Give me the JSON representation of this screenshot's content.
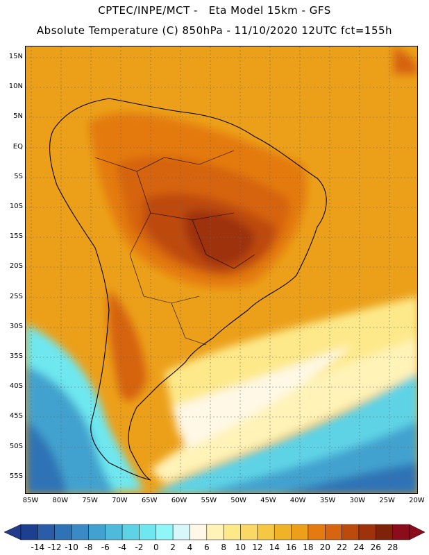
{
  "title_line1": "CPTEC/INPE/MCT -   Eta Model 15km - GFS",
  "title_line2": "Absolute Temperature (C) 850hPa - 11/10/2020 12UTC fct=155h",
  "lat_labels": [
    "15N",
    "10N",
    "5N",
    "EQ",
    "5S",
    "10S",
    "15S",
    "20S",
    "25S",
    "30S",
    "35S",
    "40S",
    "45S",
    "50S",
    "55S"
  ],
  "lon_labels": [
    "85W",
    "80W",
    "75W",
    "70W",
    "65W",
    "60W",
    "55W",
    "50W",
    "45W",
    "40W",
    "35W",
    "30W",
    "25W",
    "20W"
  ],
  "legend": {
    "ticks": [
      "-14",
      "-12",
      "-10",
      "-8",
      "-6",
      "-4",
      "-2",
      "0",
      "2",
      "4",
      "6",
      "8",
      "10",
      "12",
      "14",
      "16",
      "18",
      "20",
      "22",
      "24",
      "26",
      "28"
    ],
    "colors": [
      "#1c3f8f",
      "#2a5ca8",
      "#2f73b6",
      "#3a8ac6",
      "#42a2cf",
      "#4fbbdc",
      "#5ed3e6",
      "#6ee7ef",
      "#8ff7f8",
      "#d8f7fb",
      "#fff8e6",
      "#fff3b8",
      "#fde98a",
      "#f9d866",
      "#f5c844",
      "#efb325",
      "#eca01a",
      "#e47a10",
      "#d66410",
      "#bd4a0d",
      "#9e330b",
      "#7e2209",
      "#8b0d1b"
    ],
    "under_color": "#243a8a",
    "over_color": "#8b0d1b"
  }
}
